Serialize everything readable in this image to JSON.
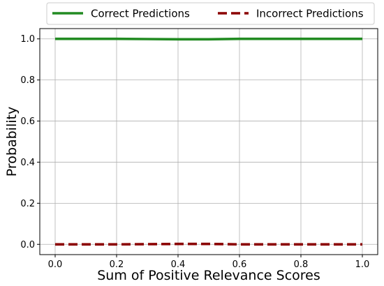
{
  "chart_data": {
    "type": "line",
    "xlabel": "Sum of Positive Relevance Scores",
    "ylabel": "Probability",
    "xlim": [
      -0.05,
      1.05
    ],
    "ylim": [
      -0.05,
      1.05
    ],
    "xticks": [
      0.0,
      0.2,
      0.4,
      0.6,
      0.8,
      1.0
    ],
    "xtick_labels": [
      "0.0",
      "0.2",
      "0.4",
      "0.6",
      "0.8",
      "1.0"
    ],
    "yticks": [
      0.0,
      0.2,
      0.4,
      0.6,
      0.8,
      1.0
    ],
    "ytick_labels": [
      "0.0",
      "0.2",
      "0.4",
      "0.6",
      "0.8",
      "1.0"
    ],
    "grid": true,
    "legend_position": "top-center",
    "series": [
      {
        "name": "Correct Predictions",
        "color": "#228B22",
        "style": "solid",
        "x": [
          0.0,
          0.1,
          0.2,
          0.3,
          0.4,
          0.5,
          0.6,
          0.7,
          0.8,
          0.9,
          1.0
        ],
        "y": [
          1.0,
          1.0,
          1.0,
          0.999,
          0.998,
          0.998,
          1.0,
          1.0,
          1.0,
          1.0,
          1.0
        ]
      },
      {
        "name": "Incorrect Predictions",
        "color": "#8B0000",
        "style": "dashed",
        "x": [
          0.0,
          0.1,
          0.2,
          0.3,
          0.4,
          0.5,
          0.6,
          0.7,
          0.8,
          0.9,
          1.0
        ],
        "y": [
          0.0,
          0.0,
          0.0,
          0.001,
          0.002,
          0.002,
          0.0,
          0.0,
          0.0,
          0.0,
          0.0
        ]
      }
    ]
  }
}
